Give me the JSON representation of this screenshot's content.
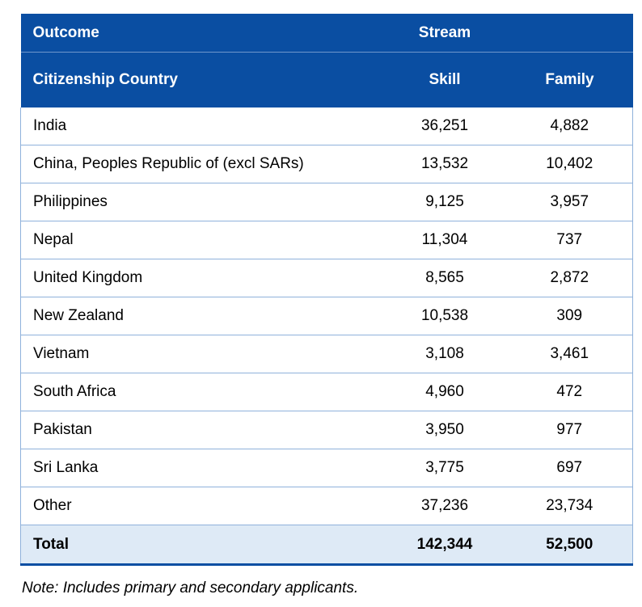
{
  "table": {
    "header_row1": {
      "col1": "Outcome",
      "col2": "Stream"
    },
    "header_row2": {
      "col1": "Citizenship Country",
      "col2": "Skill",
      "col3": "Family"
    },
    "rows": [
      {
        "country": "India",
        "skill": "36,251",
        "family": "4,882"
      },
      {
        "country": "China, Peoples Republic of (excl SARs)",
        "skill": "13,532",
        "family": "10,402"
      },
      {
        "country": "Philippines",
        "skill": "9,125",
        "family": "3,957"
      },
      {
        "country": "Nepal",
        "skill": "11,304",
        "family": "737"
      },
      {
        "country": "United Kingdom",
        "skill": "8,565",
        "family": "2,872"
      },
      {
        "country": "New Zealand",
        "skill": "10,538",
        "family": "309"
      },
      {
        "country": "Vietnam",
        "skill": "3,108",
        "family": "3,461"
      },
      {
        "country": "South Africa",
        "skill": "4,960",
        "family": "472"
      },
      {
        "country": "Pakistan",
        "skill": "3,950",
        "family": "977"
      },
      {
        "country": "Sri Lanka",
        "skill": "3,775",
        "family": "697"
      },
      {
        "country": "Other",
        "skill": "37,236",
        "family": "23,734"
      }
    ],
    "total": {
      "label": "Total",
      "skill": "142,344",
      "family": "52,500"
    }
  },
  "note": "Note: Includes primary and secondary applicants.",
  "colors": {
    "header_bg": "#0a4ea2",
    "grid_line": "#8fb1db",
    "total_bg": "#deeaf6"
  }
}
